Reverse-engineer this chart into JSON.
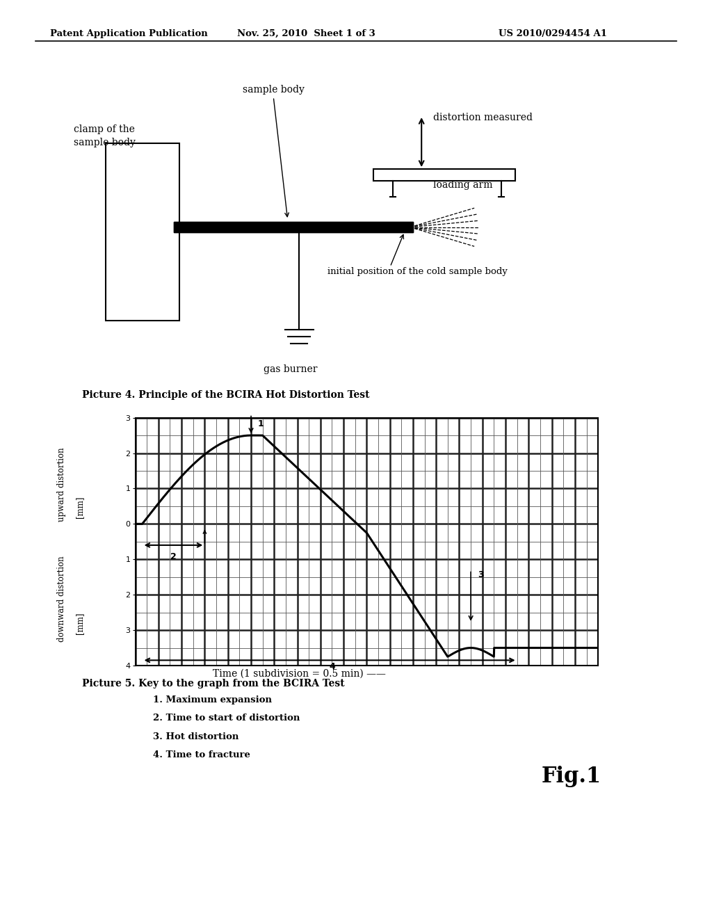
{
  "header_left": "Patent Application Publication",
  "header_mid": "Nov. 25, 2010  Sheet 1 of 3",
  "header_right": "US 2010/0294454 A1",
  "pic4_caption": "Picture 4. Principle of the BCIRA Hot Distortion Test",
  "pic5_caption": "Picture 5. Key to the graph from the BCIRA Test",
  "legend_items": [
    "1. Maximum expansion",
    "2. Time to start of distortion",
    "3. Hot distortion",
    "4. Time to fracture"
  ],
  "fig_label": "Fig.1",
  "xlabel": "Time (1 subdivision = 0.5 min) ——",
  "bg_color": "#ffffff"
}
